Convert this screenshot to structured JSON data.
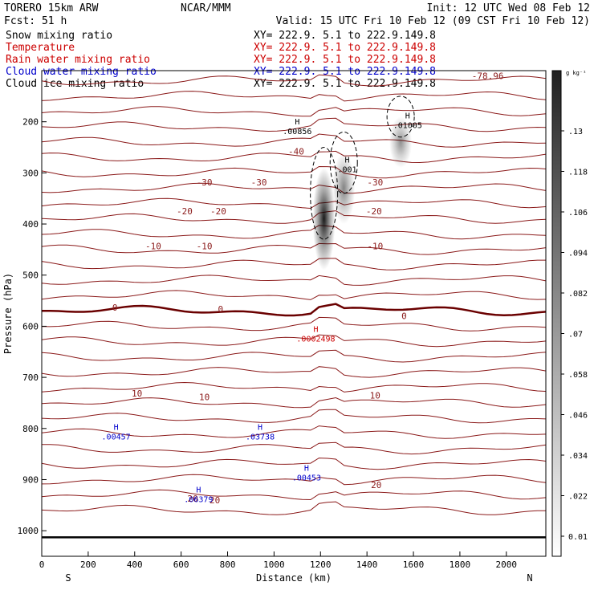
{
  "header": {
    "model": "TORERO  15km ARW",
    "forecast": "Fcst:   51 h",
    "org": "NCAR/MMM",
    "init": "Init: 12 UTC Wed 08 Feb 12",
    "valid": "Valid: 15 UTC Fri 10 Feb 12 (09 CST Fri 10 Feb 12)"
  },
  "fields": [
    {
      "name": "Snow mixing ratio",
      "xy": "XY= 222.9.  5.1 to 222.9.149.8",
      "color": "#000000"
    },
    {
      "name": "Temperature",
      "xy": "XY= 222.9.  5.1 to 222.9.149.8",
      "color": "#cc0000"
    },
    {
      "name": "Rain water mixing ratio",
      "xy": "XY= 222.9.  5.1 to 222.9.149.8",
      "color": "#cc0000"
    },
    {
      "name": "Cloud water mixing ratio",
      "xy": "XY= 222.9.  5.1 to 222.9.149.8",
      "color": "#0000cc"
    },
    {
      "name": "Cloud ice mixing ratio",
      "xy": "XY= 222.9.  5.1 to 222.9.149.8",
      "color": "#000000"
    }
  ],
  "colorbar": {
    "unit": "g kg⁻¹",
    "ticks": [
      "0.01",
      ".022",
      ".034",
      ".046",
      ".058",
      ".07",
      ".082",
      ".094",
      ".106",
      ".118",
      ".13"
    ]
  },
  "chart_data": {
    "type": "cross-section contour",
    "xlabel": "Distance (km)",
    "ylabel": "Pressure (hPa)",
    "xlim": [
      0,
      2170
    ],
    "ylim": [
      1050,
      100
    ],
    "x_ticks": [
      "0",
      "200",
      "400",
      "600",
      "800",
      "1000",
      "1200",
      "1400",
      "1600",
      "1800",
      "2000"
    ],
    "y_ticks": [
      "200",
      "300",
      "400",
      "500",
      "600",
      "700",
      "800",
      "900",
      "1000"
    ],
    "x_end_labels": {
      "left": "S",
      "right": "N"
    },
    "temperature_labels": [
      {
        "text": "-78.96",
        "x": 1920,
        "p": 110
      },
      {
        "text": "-40",
        "x": 1095,
        "p": 258
      },
      {
        "text": "-30",
        "x": 700,
        "p": 318
      },
      {
        "text": "-30",
        "x": 935,
        "p": 318
      },
      {
        "text": "-30",
        "x": 1435,
        "p": 318
      },
      {
        "text": "-20",
        "x": 615,
        "p": 375
      },
      {
        "text": "-20",
        "x": 760,
        "p": 375
      },
      {
        "text": "-20",
        "x": 1430,
        "p": 375
      },
      {
        "text": "-10",
        "x": 480,
        "p": 443
      },
      {
        "text": "-10",
        "x": 700,
        "p": 443
      },
      {
        "text": "-10",
        "x": 1435,
        "p": 443
      },
      {
        "text": "0",
        "x": 315,
        "p": 563
      },
      {
        "text": "0",
        "x": 770,
        "p": 566
      },
      {
        "text": "0",
        "x": 1560,
        "p": 580
      },
      {
        "text": "10",
        "x": 410,
        "p": 731
      },
      {
        "text": "10",
        "x": 700,
        "p": 738
      },
      {
        "text": "10",
        "x": 1435,
        "p": 735
      },
      {
        "text": "20",
        "x": 650,
        "p": 937
      },
      {
        "text": "20",
        "x": 745,
        "p": 940
      },
      {
        "text": "20",
        "x": 1440,
        "p": 910
      }
    ],
    "maxima": [
      {
        "value": ".00856",
        "x": 1100,
        "p": 218,
        "color": "#000000"
      },
      {
        "value": ".01005",
        "x": 1575,
        "p": 206,
        "color": "#000000"
      },
      {
        "value": ".001",
        "x": 1315,
        "p": 292,
        "color": "#000000"
      },
      {
        "value": ".0002498",
        "x": 1180,
        "p": 624,
        "color": "#cc0000"
      },
      {
        "value": ".00457",
        "x": 320,
        "p": 815,
        "color": "#0000cc"
      },
      {
        "value": ".03738",
        "x": 940,
        "p": 815,
        "color": "#0000cc"
      },
      {
        "value": ".00453",
        "x": 1140,
        "p": 895,
        "color": "#0000cc"
      },
      {
        "value": ".06379",
        "x": 675,
        "p": 938,
        "color": "#0000cc"
      }
    ],
    "snow_plumes": [
      {
        "x": 1215,
        "p_top": 290,
        "p_bottom": 490,
        "max": 0.13
      },
      {
        "x": 1300,
        "p_top": 260,
        "p_bottom": 400,
        "max": 0.05
      },
      {
        "x": 1545,
        "p_top": 190,
        "p_bottom": 290,
        "max": 0.04
      }
    ]
  }
}
